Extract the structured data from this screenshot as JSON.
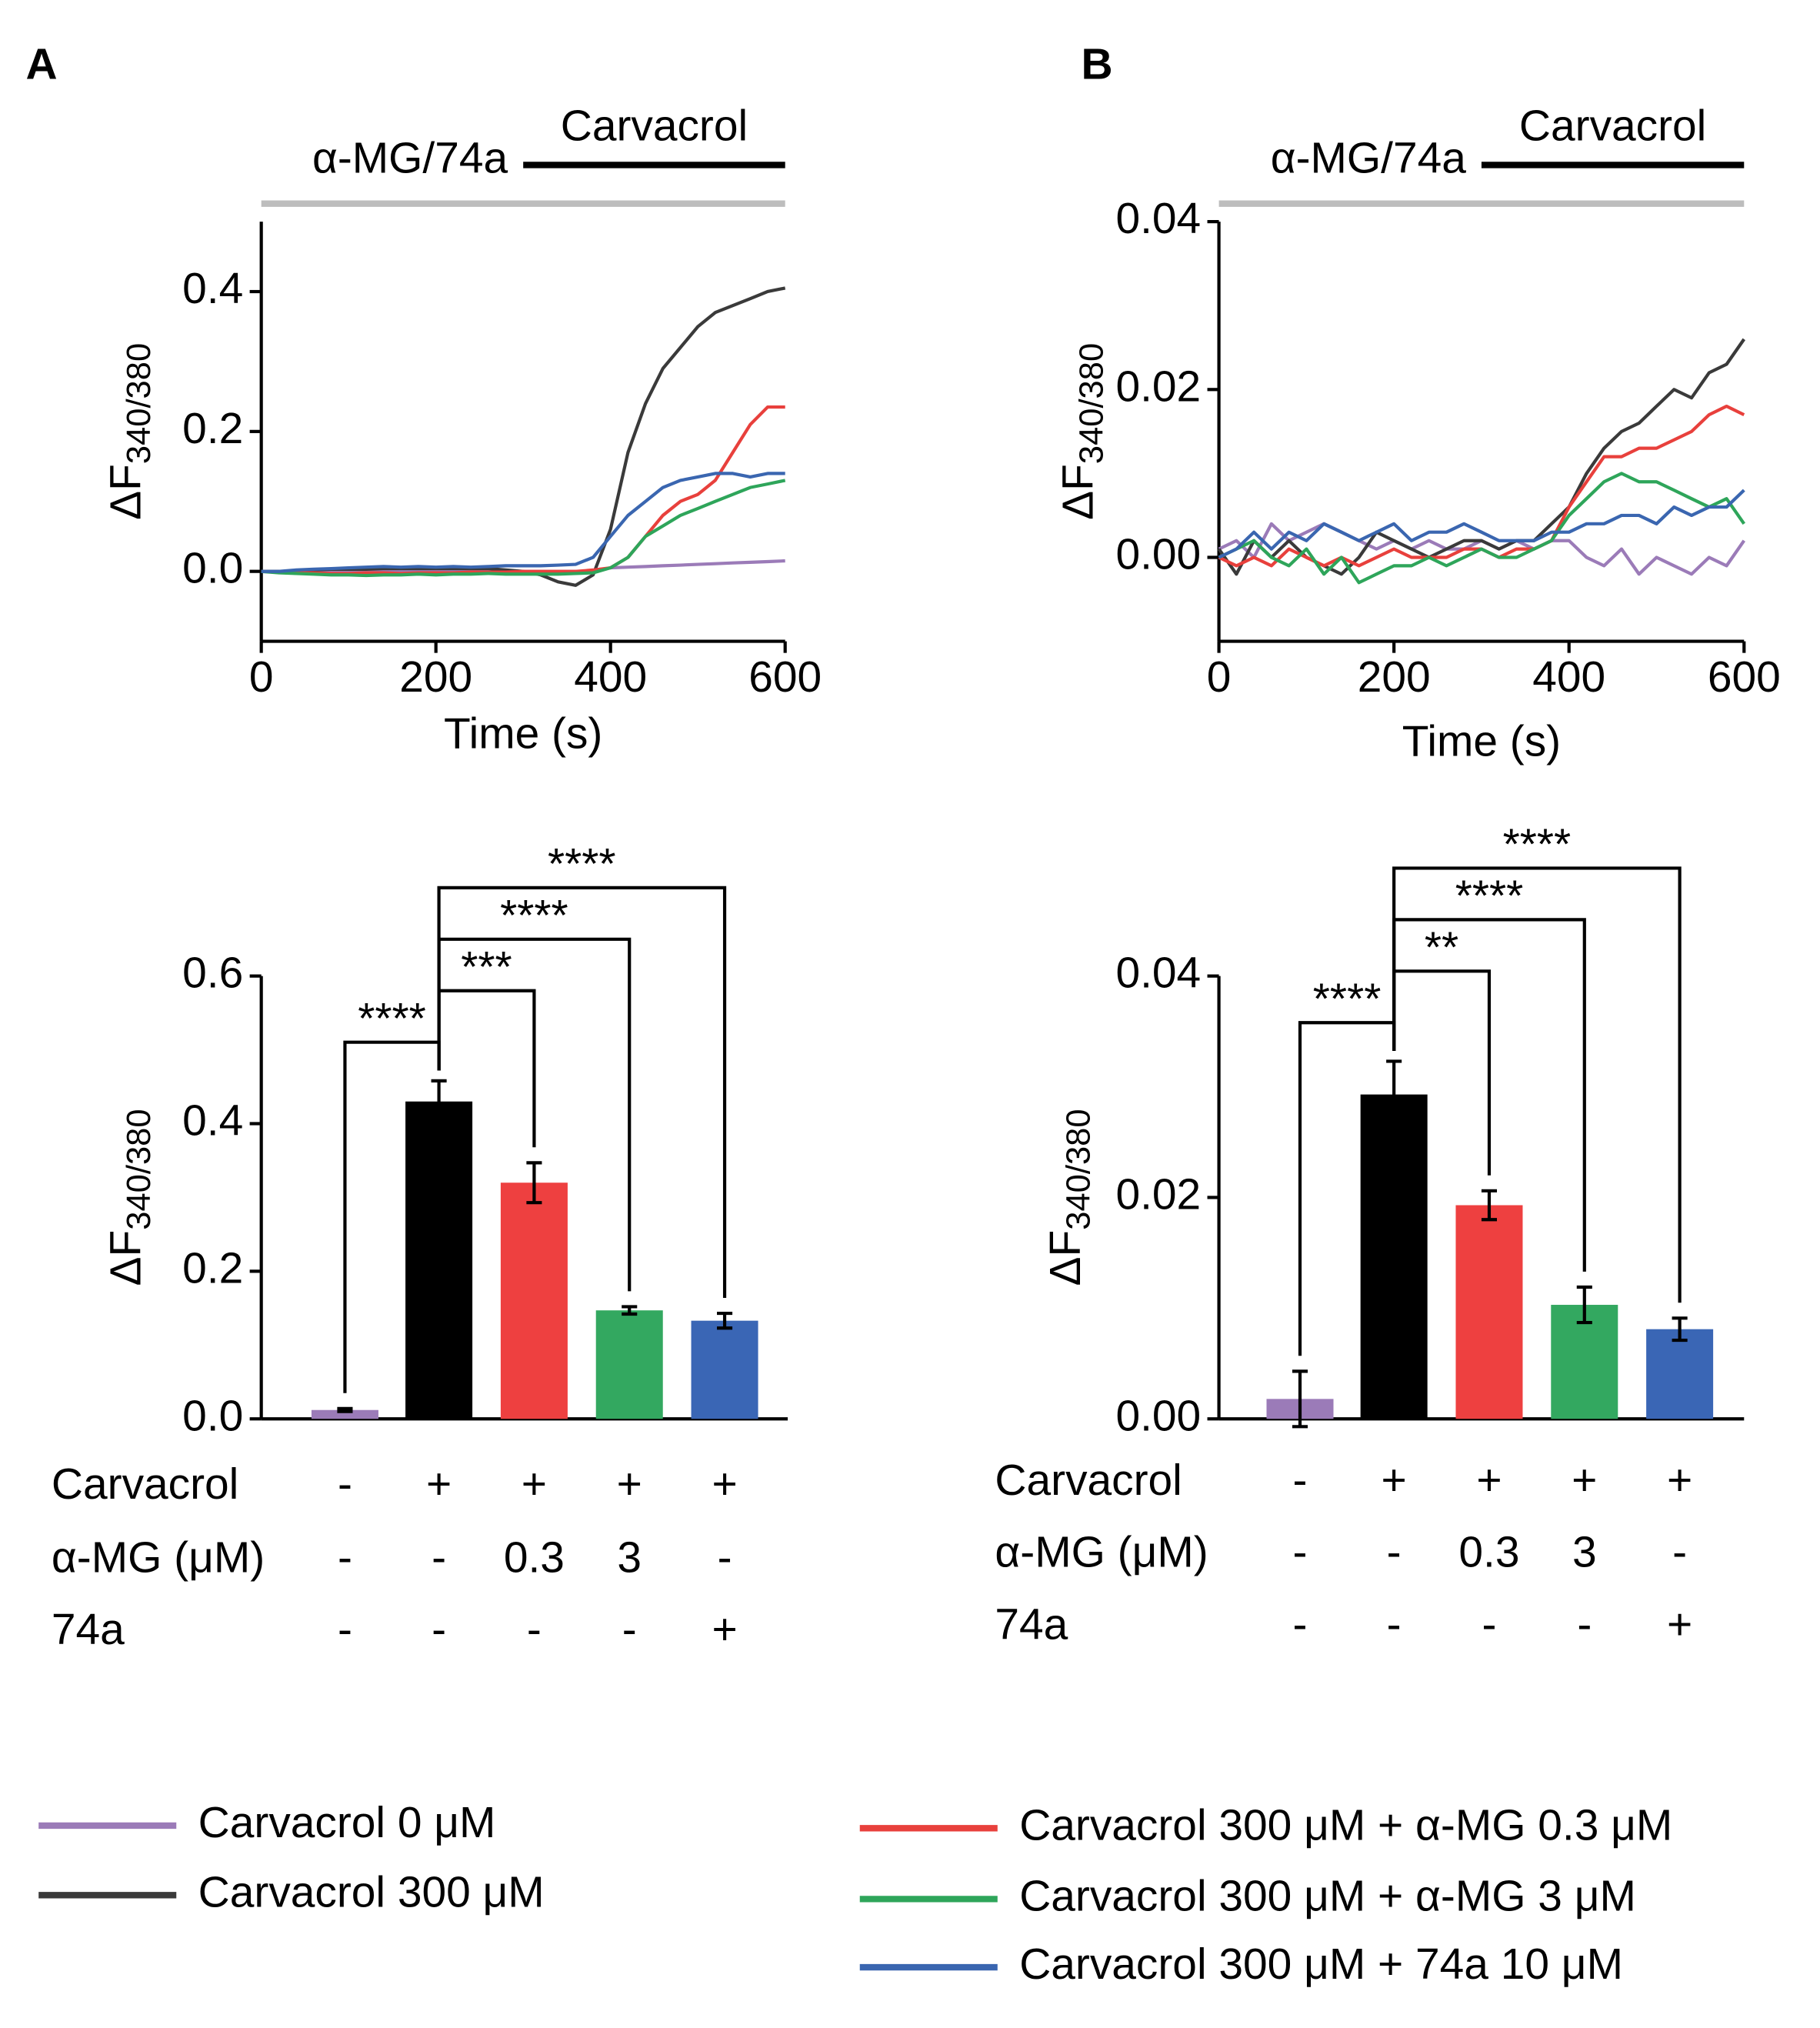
{
  "chart_data": [
    {
      "type": "line",
      "panel": "A",
      "ylabel": "ΔF",
      "ylabel_sub": "340/380",
      "xlabel": "Time (s)",
      "annotations": [
        {
          "text": "α-MG/74a",
          "x": [
            0,
            600
          ],
          "color": "#bdbdbd"
        },
        {
          "text": "Carvacrol",
          "x": [
            300,
            600
          ],
          "color": "#000000"
        }
      ],
      "x": [
        0,
        20,
        40,
        60,
        80,
        100,
        120,
        140,
        160,
        180,
        200,
        220,
        240,
        260,
        280,
        300,
        320,
        340,
        360,
        380,
        400,
        420,
        440,
        460,
        480,
        500,
        520,
        540,
        560,
        580,
        600
      ],
      "xlim": [
        0,
        600
      ],
      "xticks": [
        0,
        200,
        400,
        600
      ],
      "ylim": [
        -0.1,
        0.5
      ],
      "yticks": [
        {
          "value": 0,
          "label": "0.0"
        },
        0.2,
        0.4
      ],
      "series": [
        {
          "name": "Carvacrol 0 μM",
          "color": "#9b7bb8",
          "values": [
            0,
            0,
            0,
            0,
            0,
            0,
            0,
            0,
            0,
            0,
            0,
            0,
            0,
            0,
            0,
            0,
            0,
            0,
            0,
            0,
            0.005,
            0.006,
            0.007,
            0.008,
            0.009,
            0.01,
            0.011,
            0.012,
            0.013,
            0.014,
            0.015
          ]
        },
        {
          "name": "Carvacrol 300 μM",
          "color": "#3a3a3a",
          "values": [
            0,
            0,
            0,
            0.002,
            0.003,
            0.003,
            0.003,
            0.004,
            0.004,
            0.004,
            0.004,
            0.004,
            0.004,
            0.004,
            0.002,
            0,
            -0.005,
            -0.015,
            -0.02,
            -0.005,
            0.06,
            0.17,
            0.24,
            0.29,
            0.32,
            0.35,
            0.37,
            0.38,
            0.39,
            0.4,
            0.405
          ]
        },
        {
          "name": "Carvacrol 300 μM + α-MG 0.3 μM",
          "color": "#e8403c",
          "values": [
            0,
            -0.001,
            -0.002,
            -0.002,
            -0.003,
            -0.003,
            -0.002,
            -0.002,
            -0.003,
            -0.002,
            -0.002,
            -0.002,
            -0.001,
            -0.001,
            -0.001,
            0,
            0,
            0,
            0,
            0.002,
            0.005,
            0.02,
            0.05,
            0.08,
            0.1,
            0.11,
            0.13,
            0.17,
            0.21,
            0.235,
            0.235
          ]
        },
        {
          "name": "Carvacrol 300 μM + α-MG 3 μM",
          "color": "#2ea55a",
          "values": [
            0,
            -0.002,
            -0.003,
            -0.004,
            -0.005,
            -0.005,
            -0.006,
            -0.005,
            -0.005,
            -0.004,
            -0.005,
            -0.004,
            -0.004,
            -0.003,
            -0.004,
            -0.004,
            -0.004,
            -0.004,
            -0.003,
            -0.002,
            0.005,
            0.02,
            0.05,
            0.065,
            0.08,
            0.09,
            0.1,
            0.11,
            0.12,
            0.125,
            0.13
          ]
        },
        {
          "name": "Carvacrol 300 μM + 74a 10 μM",
          "color": "#3a66b0",
          "values": [
            0,
            0,
            0.002,
            0.003,
            0.004,
            0.005,
            0.006,
            0.007,
            0.006,
            0.007,
            0.006,
            0.007,
            0.006,
            0.007,
            0.008,
            0.008,
            0.008,
            0.009,
            0.01,
            0.02,
            0.05,
            0.08,
            0.1,
            0.12,
            0.13,
            0.135,
            0.14,
            0.14,
            0.135,
            0.14,
            0.14
          ]
        }
      ]
    },
    {
      "type": "line",
      "panel": "B",
      "ylabel": "ΔF",
      "ylabel_sub": "340/380",
      "xlabel": "Time (s)",
      "annotations": [
        {
          "text": "α-MG/74a",
          "x": [
            0,
            600
          ],
          "color": "#bdbdbd"
        },
        {
          "text": "Carvacrol",
          "x": [
            300,
            600
          ],
          "color": "#000000"
        }
      ],
      "x": [
        0,
        20,
        40,
        60,
        80,
        100,
        120,
        140,
        160,
        180,
        200,
        220,
        240,
        260,
        280,
        300,
        320,
        340,
        360,
        380,
        400,
        420,
        440,
        460,
        480,
        500,
        520,
        540,
        560,
        580,
        600
      ],
      "xlim": [
        0,
        600
      ],
      "xticks": [
        0,
        200,
        400,
        600
      ],
      "ylim": [
        -0.01,
        0.04
      ],
      "yticks": [
        {
          "value": 0,
          "label": "0.00"
        },
        0.02,
        0.04
      ],
      "series": [
        {
          "color": "#9b7bb8",
          "values": [
            0.001,
            0.002,
            0,
            0.004,
            0.002,
            0.003,
            0.004,
            0.003,
            0.002,
            0.001,
            0.002,
            0.001,
            0.002,
            0.001,
            0.001,
            0.002,
            0.001,
            0.002,
            0.001,
            0.002,
            0.002,
            0,
            -0.001,
            0.001,
            -0.002,
            0,
            -0.001,
            -0.002,
            0,
            -0.001,
            0.002
          ]
        },
        {
          "color": "#3a3a3a",
          "values": [
            0.001,
            -0.002,
            0.002,
            0,
            0.002,
            0,
            -0.001,
            -0.002,
            0,
            0.003,
            0.002,
            0.001,
            0,
            0.001,
            0.002,
            0.002,
            0.001,
            0.002,
            0.002,
            0.004,
            0.006,
            0.01,
            0.013,
            0.015,
            0.016,
            0.018,
            0.02,
            0.019,
            0.022,
            0.023,
            0.026
          ]
        },
        {
          "color": "#e8403c",
          "values": [
            0,
            -0.001,
            0,
            -0.001,
            0.001,
            0,
            -0.001,
            0,
            -0.001,
            0,
            0.001,
            0,
            0,
            0,
            0.001,
            0.001,
            0,
            0.001,
            0.001,
            0.002,
            0.006,
            0.009,
            0.012,
            0.012,
            0.013,
            0.013,
            0.014,
            0.015,
            0.017,
            0.018,
            0.017
          ]
        },
        {
          "color": "#2ea55a",
          "values": [
            0,
            0.001,
            0.002,
            0,
            -0.001,
            0.001,
            -0.002,
            0,
            -0.003,
            -0.002,
            -0.001,
            -0.001,
            0,
            -0.001,
            0,
            0.001,
            0,
            0,
            0.001,
            0.002,
            0.005,
            0.007,
            0.009,
            0.01,
            0.009,
            0.009,
            0.008,
            0.007,
            0.006,
            0.007,
            0.004
          ]
        },
        {
          "color": "#3a66b0",
          "values": [
            0,
            0.001,
            0.003,
            0.001,
            0.003,
            0.002,
            0.004,
            0.003,
            0.002,
            0.003,
            0.004,
            0.002,
            0.003,
            0.003,
            0.004,
            0.003,
            0.002,
            0.002,
            0.002,
            0.003,
            0.003,
            0.004,
            0.004,
            0.005,
            0.005,
            0.004,
            0.006,
            0.005,
            0.006,
            0.006,
            0.008
          ]
        }
      ]
    },
    {
      "type": "bar",
      "ylabel": "ΔF",
      "ylabel_sub": "340/380",
      "values": [
        0.012,
        0.43,
        0.32,
        0.147,
        0.133
      ],
      "errors": [
        0.002,
        0.028,
        0.027,
        0.005,
        0.01
      ],
      "colors": [
        "#9b7bb8",
        "#000000",
        "#ee4040",
        "#33a860",
        "#3a66b5"
      ],
      "ylim": [
        0,
        0.6
      ],
      "yticks": [
        {
          "value": 0,
          "label": "0.0"
        },
        0.2,
        0.4,
        0.6
      ],
      "conditions": [
        {
          "label": "Carvacrol",
          "values": [
            "-",
            "+",
            "+",
            "+",
            "+"
          ]
        },
        {
          "label": "α-MG (μM)",
          "values": [
            "-",
            "-",
            "0.3",
            "3",
            "-"
          ]
        },
        {
          "label": "74a",
          "values": [
            "-",
            "-",
            "-",
            "-",
            "+"
          ]
        }
      ],
      "comparisons": [
        {
          "bars": [
            1,
            0
          ],
          "label": "****"
        },
        {
          "bars": [
            1,
            2
          ],
          "label": "***"
        },
        {
          "bars": [
            1,
            3
          ],
          "label": "****"
        },
        {
          "bars": [
            1,
            4
          ],
          "label": "****"
        }
      ]
    },
    {
      "type": "bar",
      "ylabel": "ΔF",
      "ylabel_sub": "340/380",
      "values": [
        0.0018,
        0.0293,
        0.0193,
        0.0103,
        0.0081
      ],
      "errors": [
        0.0025,
        0.003,
        0.0013,
        0.0016,
        0.001
      ],
      "colors": [
        "#9b7bb8",
        "#000000",
        "#ee4040",
        "#33a860",
        "#3a66b5"
      ],
      "ylim": [
        0,
        0.04
      ],
      "yticks": [
        {
          "value": 0,
          "label": "0.00"
        },
        0.02,
        0.04
      ],
      "conditions": [
        {
          "label": "Carvacrol",
          "values": [
            "-",
            "+",
            "+",
            "+",
            "+"
          ]
        },
        {
          "label": "α-MG (μM)",
          "values": [
            "-",
            "-",
            "0.3",
            "3",
            "-"
          ]
        },
        {
          "label": "74a",
          "values": [
            "-",
            "-",
            "-",
            "-",
            "+"
          ]
        }
      ],
      "comparisons": [
        {
          "bars": [
            1,
            0
          ],
          "label": "****"
        },
        {
          "bars": [
            1,
            2
          ],
          "label": "**"
        },
        {
          "bars": [
            1,
            3
          ],
          "label": "****"
        },
        {
          "bars": [
            1,
            4
          ],
          "label": "****"
        }
      ]
    }
  ]
}
